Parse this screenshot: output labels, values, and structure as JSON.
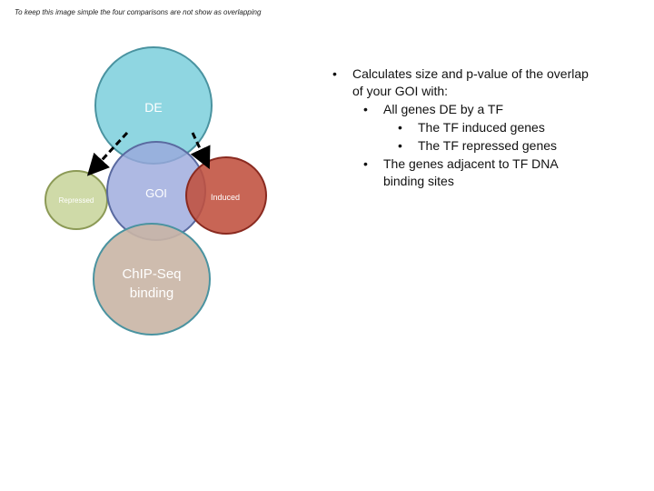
{
  "note": "To keep this image simple the four comparisons are not show as overlapping",
  "diagram": {
    "nodes": [
      {
        "id": "de",
        "label": "DE",
        "color": "#8fd6e1"
      },
      {
        "id": "repressed",
        "label": "Repressed",
        "color": "#c6d69e"
      },
      {
        "id": "goi",
        "label": "GOI",
        "color": "#9aa8dc"
      },
      {
        "id": "induced",
        "label": "Induced",
        "color": "#c0503d"
      },
      {
        "id": "chip",
        "label_line1": "ChIP-Seq",
        "label_line2": "binding",
        "color": "#c9b5a5"
      }
    ],
    "edges": [
      {
        "from": "de",
        "to": "repressed",
        "style": "dashed-arrow"
      },
      {
        "from": "de",
        "to": "induced",
        "style": "dashed-arrow"
      }
    ]
  },
  "bullets": [
    {
      "level": 1,
      "line1": "Calculates size and p-value of the overlap",
      "line2": "of your GOI with:"
    },
    {
      "level": 2,
      "line1": "All genes DE by a TF"
    },
    {
      "level": 3,
      "line1": "The TF induced genes"
    },
    {
      "level": 3,
      "line1": "The TF repressed genes"
    },
    {
      "level": 2,
      "line1": "The genes adjacent to TF DNA",
      "line2": "binding sites"
    }
  ]
}
